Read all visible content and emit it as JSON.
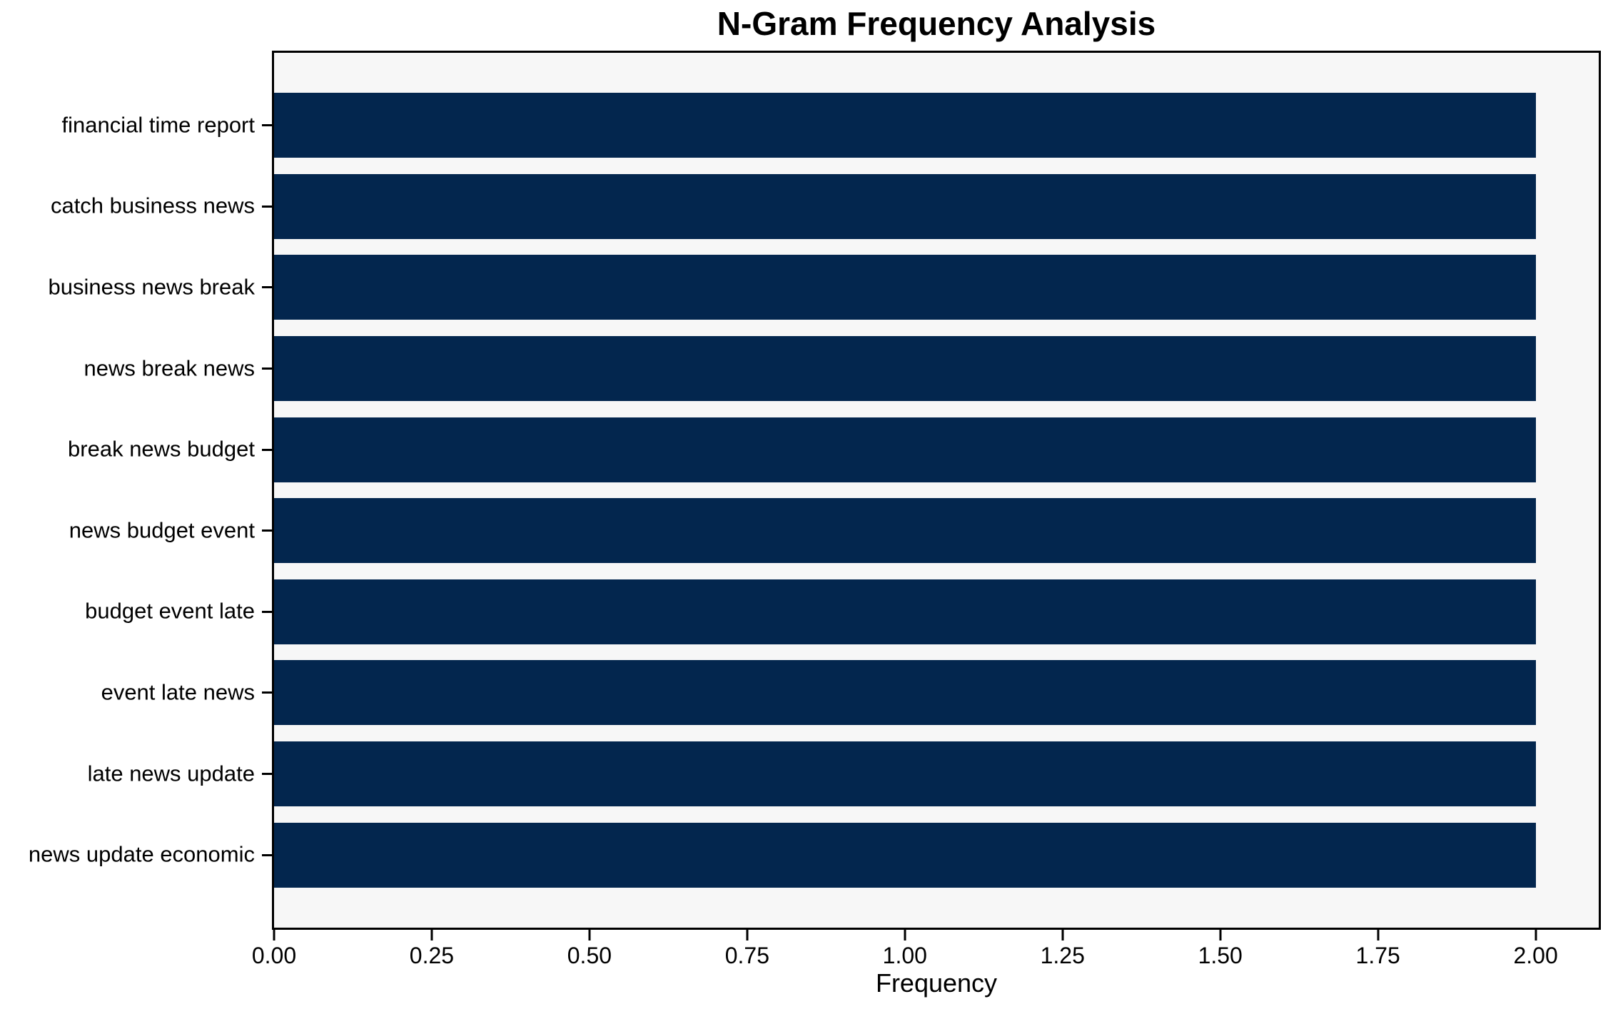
{
  "chart_data": {
    "type": "bar",
    "orientation": "horizontal",
    "title": "N-Gram Frequency Analysis",
    "xlabel": "Frequency",
    "ylabel": "",
    "categories": [
      "financial time report",
      "catch business news",
      "business news break",
      "news break news",
      "break news budget",
      "news budget event",
      "budget event late",
      "event late news",
      "late news update",
      "news update economic"
    ],
    "values": [
      2,
      2,
      2,
      2,
      2,
      2,
      2,
      2,
      2,
      2
    ],
    "xlim": [
      0,
      2.1
    ],
    "xticks": [
      0,
      0.25,
      0.5,
      0.75,
      1.0,
      1.25,
      1.5,
      1.75,
      2.0
    ],
    "xtick_labels": [
      "0.00",
      "0.25",
      "0.50",
      "0.75",
      "1.00",
      "1.25",
      "1.50",
      "1.75",
      "2.00"
    ],
    "grid": false,
    "legend_position": "none",
    "colors": {
      "bar": "#03264e",
      "plot_bg": "#f7f7f7",
      "figure_bg": "#ffffff",
      "spine": "#000000",
      "text": "#000000"
    }
  }
}
